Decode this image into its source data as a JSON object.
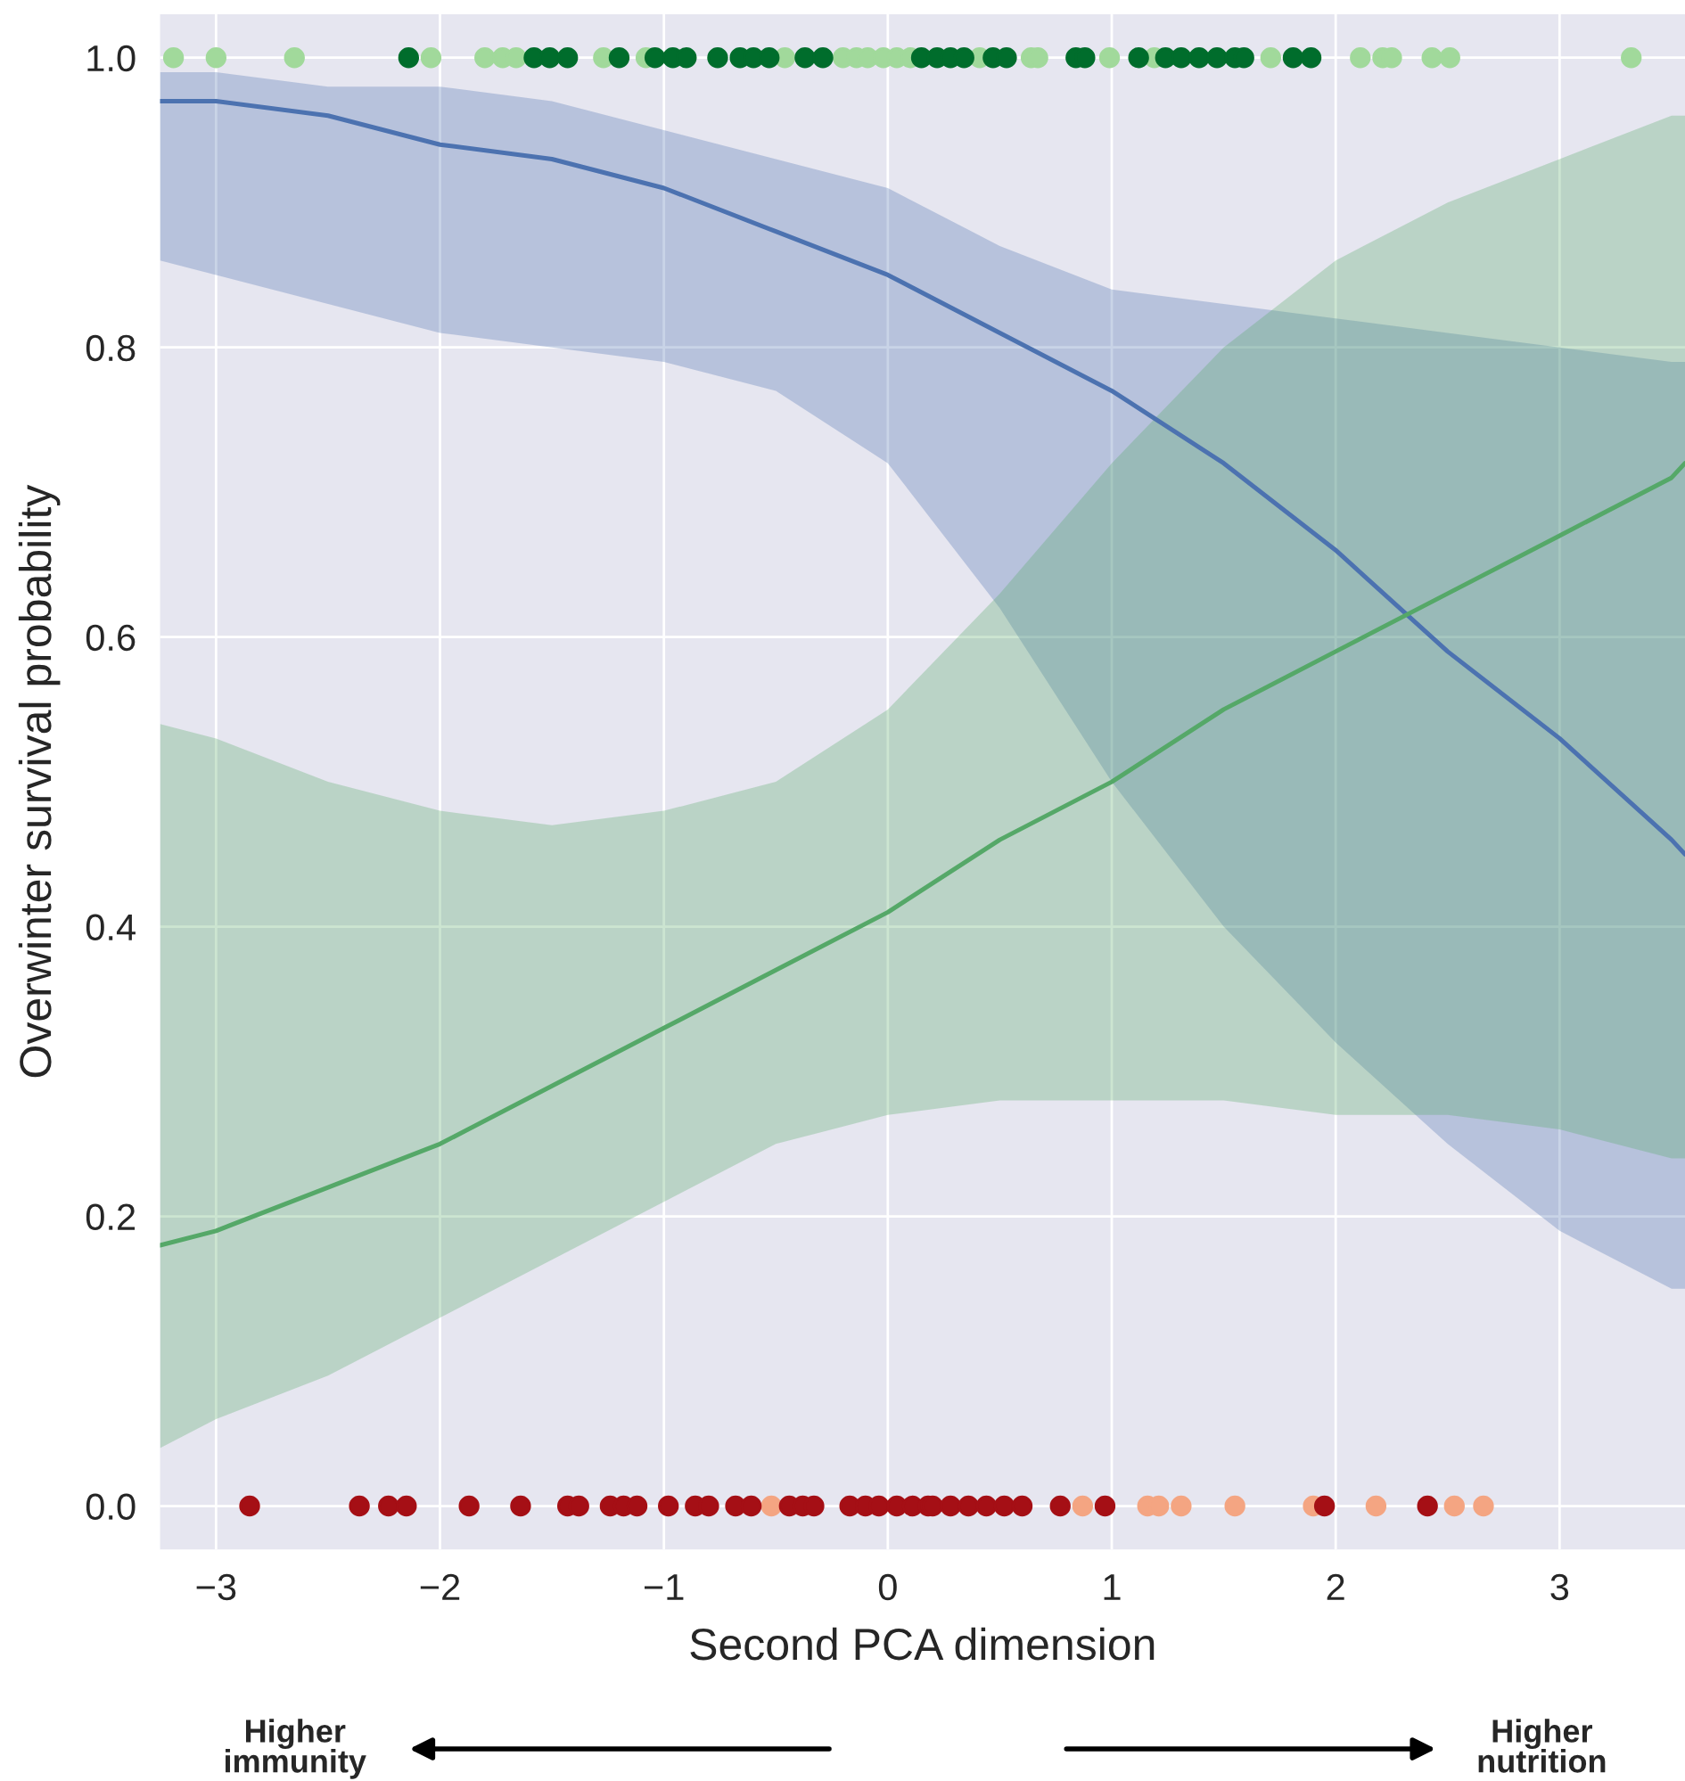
{
  "chart_data": {
    "type": "line",
    "xlabel": "Second PCA dimension",
    "ylabel": "Overwinter survival probability",
    "xlim": [
      -3.25,
      3.56
    ],
    "ylim": [
      -0.03,
      1.03
    ],
    "xticks": [
      {
        "value": -3,
        "label": "−3"
      },
      {
        "value": -2,
        "label": "−2"
      },
      {
        "value": -1,
        "label": "−1"
      },
      0,
      1,
      2,
      3
    ],
    "yticks": [
      {
        "value": 0,
        "label": "0.0"
      },
      {
        "value": 0.2,
        "label": "0.2"
      },
      {
        "value": 0.4,
        "label": "0.4"
      },
      {
        "value": 0.6,
        "label": "0.6"
      },
      {
        "value": 0.8,
        "label": "0.8"
      },
      {
        "value": 1,
        "label": "1.0"
      }
    ],
    "grid": true,
    "annotations": [
      "Higher immunity",
      "Higher nutrition"
    ],
    "series": [
      {
        "color": "#4c72b0",
        "x": [
          -3.25,
          -3,
          -2.5,
          -2,
          -1.5,
          -1,
          -0.5,
          0,
          0.5,
          1,
          1.5,
          2,
          2.5,
          3,
          3.5,
          3.56
        ],
        "values": [
          0.97,
          0.97,
          0.96,
          0.94,
          0.93,
          0.91,
          0.88,
          0.85,
          0.81,
          0.77,
          0.72,
          0.66,
          0.59,
          0.53,
          0.46,
          0.45
        ],
        "lower": [
          0.86,
          0.85,
          0.83,
          0.81,
          0.8,
          0.79,
          0.77,
          0.72,
          0.62,
          0.5,
          0.4,
          0.32,
          0.25,
          0.19,
          0.15,
          0.15
        ],
        "upper": [
          0.99,
          0.99,
          0.98,
          0.98,
          0.97,
          0.95,
          0.93,
          0.91,
          0.87,
          0.84,
          0.83,
          0.82,
          0.81,
          0.8,
          0.79,
          0.79
        ]
      },
      {
        "color": "#55a868",
        "x": [
          -3.25,
          -3,
          -2.5,
          -2,
          -1.5,
          -1,
          -0.5,
          0,
          0.5,
          1,
          1.5,
          2,
          2.5,
          3,
          3.5,
          3.56
        ],
        "values": [
          0.18,
          0.19,
          0.22,
          0.25,
          0.29,
          0.33,
          0.37,
          0.41,
          0.46,
          0.5,
          0.55,
          0.59,
          0.63,
          0.67,
          0.71,
          0.72
        ],
        "lower": [
          0.04,
          0.06,
          0.09,
          0.13,
          0.17,
          0.21,
          0.25,
          0.27,
          0.28,
          0.28,
          0.28,
          0.27,
          0.27,
          0.26,
          0.24,
          0.24
        ],
        "upper": [
          0.54,
          0.53,
          0.5,
          0.48,
          0.47,
          0.48,
          0.5,
          0.55,
          0.63,
          0.72,
          0.8,
          0.86,
          0.9,
          0.93,
          0.96,
          0.96
        ]
      },
      {
        "type": "scatter",
        "color": "#a1d99b",
        "x": [
          -3.19,
          -3.0,
          -2.65,
          -2.04,
          -1.8,
          -1.72,
          -1.66,
          -1.27,
          -1.08,
          -0.46,
          -0.2,
          -0.14,
          -0.09,
          -0.02,
          0.04,
          0.1,
          0.41,
          0.64,
          0.67,
          0.99,
          1.19,
          1.71,
          2.11,
          2.21,
          2.25,
          2.43,
          2.51,
          3.32
        ],
        "values": [
          1,
          1,
          1,
          1,
          1,
          1,
          1,
          1,
          1,
          1,
          1,
          1,
          1,
          1,
          1,
          1,
          1,
          1,
          1,
          1,
          1,
          1,
          1,
          1,
          1,
          1,
          1,
          1
        ]
      },
      {
        "type": "scatter",
        "color": "#006d2c",
        "x": [
          -2.14,
          -1.58,
          -1.51,
          -1.43,
          -1.2,
          -1.04,
          -0.96,
          -0.9,
          -0.76,
          -0.66,
          -0.6,
          -0.53,
          -0.37,
          -0.29,
          0.15,
          0.22,
          0.28,
          0.34,
          0.47,
          0.53,
          0.84,
          0.88,
          1.12,
          1.24,
          1.31,
          1.39,
          1.47,
          1.55,
          1.59,
          1.81,
          1.89
        ],
        "values": [
          1,
          1,
          1,
          1,
          1,
          1,
          1,
          1,
          1,
          1,
          1,
          1,
          1,
          1,
          1,
          1,
          1,
          1,
          1,
          1,
          1,
          1,
          1,
          1,
          1,
          1,
          1,
          1,
          1,
          1,
          1
        ]
      },
      {
        "type": "scatter",
        "color": "#f4a582",
        "x": [
          -0.52,
          0.87,
          1.16,
          1.21,
          1.31,
          1.55,
          1.9,
          2.18,
          2.53,
          2.66
        ],
        "values": [
          0,
          0,
          0,
          0,
          0,
          0,
          0,
          0,
          0,
          0
        ]
      },
      {
        "type": "scatter",
        "color": "#a50f15",
        "x": [
          -2.85,
          -2.36,
          -2.23,
          -2.15,
          -1.87,
          -1.64,
          -1.43,
          -1.38,
          -1.24,
          -1.18,
          -1.12,
          -0.98,
          -0.86,
          -0.8,
          -0.68,
          -0.61,
          -0.44,
          -0.38,
          -0.33,
          -0.17,
          -0.1,
          -0.04,
          0.04,
          0.11,
          0.18,
          0.2,
          0.28,
          0.36,
          0.44,
          0.52,
          0.6,
          0.77,
          0.97,
          1.95,
          2.41
        ],
        "values": [
          0,
          0,
          0,
          0,
          0,
          0,
          0,
          0,
          0,
          0,
          0,
          0,
          0,
          0,
          0,
          0,
          0,
          0,
          0,
          0,
          0,
          0,
          0,
          0,
          0,
          0,
          0,
          0,
          0,
          0,
          0,
          0,
          0,
          0,
          0
        ]
      }
    ]
  }
}
